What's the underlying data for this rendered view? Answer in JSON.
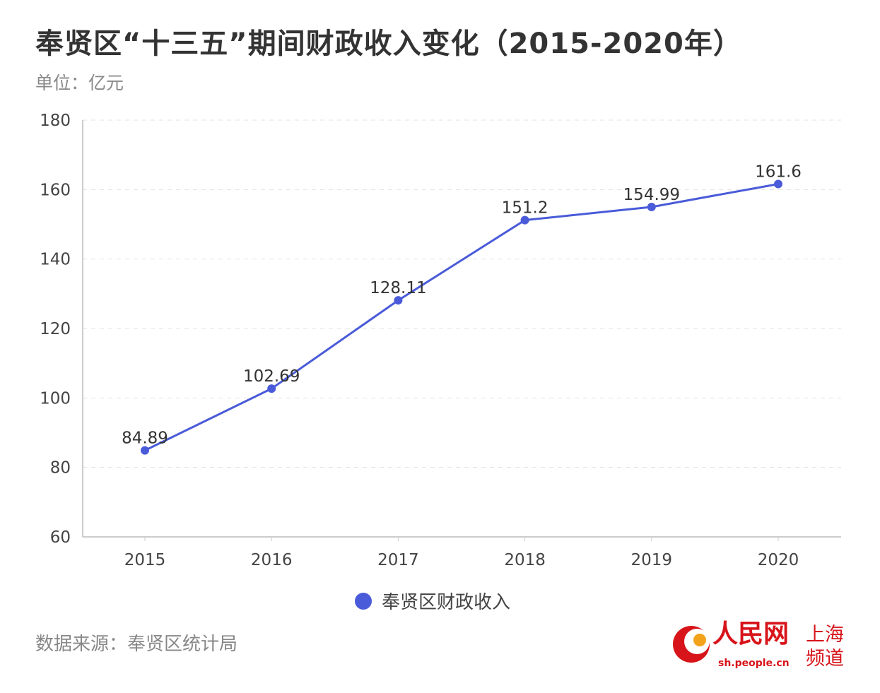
{
  "title": "奉贤区“十三五”期间财政收入变化（2015-2020年）",
  "unit": "单位：亿元",
  "source": "数据来源：奉贤区统计局",
  "logo": {
    "name": "人民网",
    "url": "sh.people.cn",
    "channel": "上海频道"
  },
  "colors": {
    "series": "#4a5bd9",
    "logo": "#d7141a"
  },
  "chart_data": {
    "type": "line",
    "title": "奉贤区“十三五”期间财政收入变化（2015-2020年）",
    "xlabel": "",
    "ylabel": "单位：亿元",
    "categories": [
      "2015",
      "2016",
      "2017",
      "2018",
      "2019",
      "2020"
    ],
    "series": [
      {
        "name": "奉贤区财政收入",
        "values": [
          84.89,
          102.69,
          128.11,
          151.2,
          154.99,
          161.6
        ],
        "labels": [
          "84.89",
          "102.69",
          "128.11",
          "151.2",
          "154.99",
          "161.6"
        ]
      }
    ],
    "ylim": [
      60,
      180
    ],
    "yticks": [
      60,
      80,
      100,
      120,
      140,
      160,
      180
    ],
    "grid": true,
    "legend": "bottom-center"
  }
}
